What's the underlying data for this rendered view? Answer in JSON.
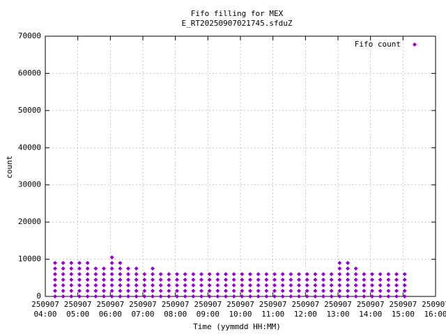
{
  "chart_data": {
    "type": "scatter",
    "title": "Fifo filling for MEX",
    "subtitle": "E_RT20250907021745.sfduZ",
    "x_label": "Time (yymmdd HH:MM)",
    "y_label": "count",
    "grid": true,
    "legend": "top-right",
    "xlim": [
      4,
      16
    ],
    "xticks": [
      {
        "value": 4,
        "label": "250907 04:00"
      },
      {
        "value": 5,
        "label": "250907 05:00"
      },
      {
        "value": 6,
        "label": "250907 06:00"
      },
      {
        "value": 7,
        "label": "250907 07:00"
      },
      {
        "value": 8,
        "label": "250907 08:00"
      },
      {
        "value": 9,
        "label": "250907 09:00"
      },
      {
        "value": 10,
        "label": "250907 10:00"
      },
      {
        "value": 11,
        "label": "250907 11:00"
      },
      {
        "value": 12,
        "label": "250907 12:00"
      },
      {
        "value": 13,
        "label": "250907 13:00"
      },
      {
        "value": 14,
        "label": "250907 14:00"
      },
      {
        "value": 15,
        "label": "250907 15:00"
      },
      {
        "value": 16,
        "label": "250907 16:00"
      }
    ],
    "ylim": [
      0,
      70000
    ],
    "yticks": [
      0,
      10000,
      20000,
      30000,
      40000,
      50000,
      60000,
      70000
    ],
    "series": [
      {
        "name": "Fifo count",
        "color": "#9400d3",
        "x": [
          4.3,
          4.3,
          4.3,
          4.3,
          4.3,
          4.3,
          4.3,
          4.55,
          4.55,
          4.55,
          4.55,
          4.55,
          4.55,
          4.55,
          4.8,
          4.8,
          4.8,
          4.8,
          4.8,
          4.8,
          4.8,
          5.05,
          5.05,
          5.05,
          5.05,
          5.05,
          5.05,
          5.05,
          5.3,
          5.3,
          5.3,
          5.3,
          5.3,
          5.3,
          5.3,
          5.55,
          5.55,
          5.55,
          5.55,
          5.55,
          5.55,
          5.8,
          5.8,
          5.8,
          5.8,
          5.8,
          5.8,
          6.05,
          6.05,
          6.05,
          6.05,
          6.05,
          6.05,
          6.05,
          6.05,
          6.3,
          6.3,
          6.3,
          6.3,
          6.3,
          6.3,
          6.3,
          6.55,
          6.55,
          6.55,
          6.55,
          6.55,
          6.55,
          6.8,
          6.8,
          6.8,
          6.8,
          6.8,
          6.8,
          7.05,
          7.05,
          7.05,
          7.05,
          7.05,
          7.3,
          7.3,
          7.3,
          7.3,
          7.3,
          7.3,
          7.55,
          7.55,
          7.55,
          7.55,
          7.55,
          7.8,
          7.8,
          7.8,
          7.8,
          7.8,
          8.05,
          8.05,
          8.05,
          8.05,
          8.05,
          8.3,
          8.3,
          8.3,
          8.3,
          8.3,
          8.55,
          8.55,
          8.55,
          8.55,
          8.55,
          8.8,
          8.8,
          8.8,
          8.8,
          8.8,
          9.05,
          9.05,
          9.05,
          9.05,
          9.05,
          9.3,
          9.3,
          9.3,
          9.3,
          9.3,
          9.55,
          9.55,
          9.55,
          9.55,
          9.55,
          9.8,
          9.8,
          9.8,
          9.8,
          9.8,
          10.05,
          10.05,
          10.05,
          10.05,
          10.05,
          10.3,
          10.3,
          10.3,
          10.3,
          10.3,
          10.55,
          10.55,
          10.55,
          10.55,
          10.55,
          10.8,
          10.8,
          10.8,
          10.8,
          10.8,
          11.05,
          11.05,
          11.05,
          11.05,
          11.05,
          11.3,
          11.3,
          11.3,
          11.3,
          11.3,
          11.55,
          11.55,
          11.55,
          11.55,
          11.55,
          11.8,
          11.8,
          11.8,
          11.8,
          11.8,
          12.05,
          12.05,
          12.05,
          12.05,
          12.05,
          12.3,
          12.3,
          12.3,
          12.3,
          12.3,
          12.55,
          12.55,
          12.55,
          12.55,
          12.55,
          12.8,
          12.8,
          12.8,
          12.8,
          12.8,
          13.05,
          13.05,
          13.05,
          13.05,
          13.05,
          13.05,
          13.05,
          13.3,
          13.3,
          13.3,
          13.3,
          13.3,
          13.3,
          13.3,
          13.55,
          13.55,
          13.55,
          13.55,
          13.55,
          13.55,
          13.8,
          13.8,
          13.8,
          13.8,
          13.8,
          14.05,
          14.05,
          14.05,
          14.05,
          14.05,
          14.3,
          14.3,
          14.3,
          14.3,
          14.3,
          14.55,
          14.55,
          14.55,
          14.55,
          14.55,
          14.8,
          14.8,
          14.8,
          14.8,
          14.8,
          15.05,
          15.05,
          15.05,
          15.05,
          15.05
        ],
        "values": [
          0,
          1500,
          3000,
          4500,
          6000,
          7500,
          9000,
          0,
          1500,
          3000,
          4500,
          6000,
          7500,
          9000,
          0,
          1500,
          3000,
          4500,
          6000,
          7500,
          9000,
          0,
          1500,
          3000,
          4500,
          6000,
          7500,
          9000,
          0,
          1500,
          3000,
          4500,
          6000,
          7500,
          9000,
          0,
          1500,
          3000,
          4500,
          6000,
          7500,
          0,
          1500,
          3000,
          4500,
          6000,
          7500,
          0,
          1500,
          3000,
          4500,
          6000,
          7500,
          9000,
          10500,
          0,
          1500,
          3000,
          4500,
          6000,
          7500,
          9000,
          0,
          1500,
          3000,
          4500,
          6000,
          7500,
          0,
          1500,
          3000,
          4500,
          6000,
          7500,
          0,
          1500,
          3000,
          4500,
          6000,
          0,
          1500,
          3000,
          4500,
          6000,
          7500,
          0,
          1500,
          3000,
          4500,
          6000,
          0,
          1500,
          3000,
          4500,
          6000,
          0,
          1500,
          3000,
          4500,
          6000,
          0,
          1500,
          3000,
          4500,
          6000,
          0,
          1500,
          3000,
          4500,
          6000,
          0,
          1500,
          3000,
          4500,
          6000,
          0,
          1500,
          3000,
          4500,
          6000,
          0,
          1500,
          3000,
          4500,
          6000,
          0,
          1500,
          3000,
          4500,
          6000,
          0,
          1500,
          3000,
          4500,
          6000,
          0,
          1500,
          3000,
          4500,
          6000,
          0,
          1500,
          3000,
          4500,
          6000,
          0,
          1500,
          3000,
          4500,
          6000,
          0,
          1500,
          3000,
          4500,
          6000,
          0,
          1500,
          3000,
          4500,
          6000,
          0,
          1500,
          3000,
          4500,
          6000,
          0,
          1500,
          3000,
          4500,
          6000,
          0,
          1500,
          3000,
          4500,
          6000,
          0,
          1500,
          3000,
          4500,
          6000,
          0,
          1500,
          3000,
          4500,
          6000,
          0,
          1500,
          3000,
          4500,
          6000,
          0,
          1500,
          3000,
          4500,
          6000,
          0,
          1500,
          3000,
          4500,
          6000,
          7500,
          9000,
          0,
          1500,
          3000,
          4500,
          6000,
          7500,
          9000,
          0,
          1500,
          3000,
          4500,
          6000,
          7500,
          0,
          1500,
          3000,
          4500,
          6000,
          0,
          1500,
          3000,
          4500,
          6000,
          0,
          1500,
          3000,
          4500,
          6000,
          0,
          1500,
          3000,
          4500,
          6000,
          0,
          1500,
          3000,
          4500,
          6000,
          0,
          1500,
          3000,
          4500,
          6000
        ]
      }
    ]
  }
}
